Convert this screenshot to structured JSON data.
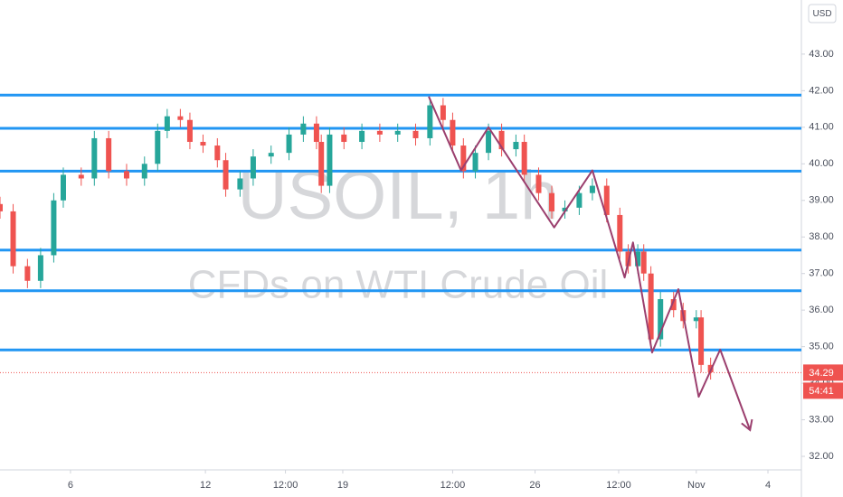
{
  "chart_data": {
    "type": "candlestick",
    "symbol_watermark": "USOIL, 1h",
    "description_watermark": "CFDs on WTI Crude Oil",
    "currency": "USD",
    "last_price": 34.29,
    "countdown": "54:41",
    "up_color": "#26a69a",
    "down_color": "#ef5350",
    "x": [
      0,
      11,
      23,
      34,
      45,
      53,
      68,
      79,
      91,
      106,
      121,
      132,
      140,
      151,
      159,
      170,
      182,
      189,
      201,
      212,
      227,
      242,
      254,
      265,
      269,
      276,
      288,
      303,
      318,
      333,
      348,
      360,
      371,
      379,
      388,
      398,
      409,
      420,
      432,
      439,
      451,
      462,
      473,
      485,
      496,
      508,
      519,
      526,
      534,
      539,
      545,
      553,
      564,
      572,
      583,
      587,
      595
    ],
    "open": [
      38.9,
      38.7,
      37.2,
      36.8,
      37.5,
      39.0,
      39.7,
      39.6,
      40.7,
      39.8,
      39.6,
      40.0,
      40.9,
      41.3,
      41.2,
      40.6,
      40.5,
      40.1,
      39.3,
      39.6,
      40.2,
      40.3,
      40.8,
      41.1,
      40.6,
      39.4,
      40.8,
      40.6,
      40.9,
      40.8,
      40.9,
      40.7,
      41.6,
      41.2,
      40.5,
      39.8,
      40.3,
      40.9,
      40.4,
      40.6,
      39.7,
      39.2,
      38.7,
      38.8,
      39.2,
      39.4,
      38.6,
      37.6,
      37.2,
      37.6,
      37.0,
      35.2,
      36.3,
      36.0,
      35.7,
      35.8,
      34.5
    ],
    "high": [
      39.1,
      38.9,
      37.4,
      37.7,
      39.2,
      39.9,
      39.9,
      40.9,
      40.9,
      40.0,
      40.2,
      41.1,
      41.5,
      41.5,
      41.4,
      40.8,
      40.7,
      40.3,
      39.8,
      40.4,
      40.5,
      41.0,
      41.3,
      41.3,
      40.8,
      41.0,
      41.0,
      41.1,
      41.1,
      41.1,
      41.1,
      41.8,
      41.8,
      41.4,
      40.7,
      40.5,
      41.1,
      41.1,
      40.8,
      40.8,
      39.9,
      39.4,
      39.0,
      39.4,
      39.6,
      39.6,
      38.8,
      37.8,
      37.8,
      37.8,
      37.2,
      36.5,
      36.5,
      36.2,
      36.0,
      36.0,
      34.7
    ],
    "low": [
      38.5,
      37.0,
      36.6,
      36.6,
      37.3,
      38.8,
      39.4,
      39.4,
      39.6,
      39.4,
      39.4,
      39.8,
      40.7,
      41.0,
      40.4,
      40.3,
      39.9,
      39.1,
      39.1,
      39.4,
      40.0,
      40.1,
      40.6,
      40.4,
      39.2,
      39.2,
      40.4,
      40.4,
      40.6,
      40.6,
      40.5,
      40.5,
      41.0,
      40.3,
      39.6,
      39.6,
      40.1,
      40.2,
      40.2,
      39.5,
      39.0,
      38.5,
      38.5,
      38.6,
      39.0,
      38.4,
      37.4,
      37.0,
      37.0,
      36.8,
      35.0,
      35.0,
      35.8,
      35.5,
      35.5,
      34.3,
      34.1
    ],
    "close": [
      38.7,
      37.2,
      36.8,
      37.5,
      39.0,
      39.7,
      39.6,
      40.7,
      39.8,
      39.6,
      40.0,
      40.9,
      41.3,
      41.2,
      40.6,
      40.5,
      40.1,
      39.3,
      39.6,
      40.2,
      40.3,
      40.8,
      41.1,
      40.6,
      39.4,
      40.8,
      40.6,
      40.9,
      40.8,
      40.9,
      40.7,
      41.6,
      41.2,
      40.5,
      39.8,
      40.3,
      40.9,
      40.4,
      40.6,
      39.7,
      39.2,
      38.7,
      38.8,
      39.2,
      39.4,
      38.6,
      37.6,
      37.2,
      37.6,
      37.0,
      35.2,
      36.3,
      36.0,
      35.7,
      35.8,
      34.5,
      34.3
    ],
    "levels": {
      "color": "#2196f3",
      "values": [
        41.88,
        40.97,
        39.8,
        37.64,
        36.53,
        34.91
      ]
    },
    "zigzag": {
      "color": "#9b3f6e",
      "x": [
        359,
        386,
        409,
        464,
        496,
        523,
        530,
        546,
        568,
        585,
        603,
        628
      ],
      "y": [
        41.84,
        39.82,
        41.0,
        38.26,
        39.82,
        36.89,
        37.85,
        34.84,
        36.57,
        33.63,
        34.92,
        32.72
      ]
    },
    "xlim": [
      0,
      671
    ],
    "ylim": [
      31.63,
      44.48
    ],
    "xticks": [
      {
        "value": 59,
        "label": "6"
      },
      {
        "value": 172,
        "label": "12"
      },
      {
        "value": 239,
        "label": "12:00"
      },
      {
        "value": 287,
        "label": "19"
      },
      {
        "value": 379,
        "label": "12:00"
      },
      {
        "value": 448,
        "label": "26"
      },
      {
        "value": 518,
        "label": "12:00"
      },
      {
        "value": 583,
        "label": "Nov"
      },
      {
        "value": 643,
        "label": "4"
      }
    ],
    "yticks": [
      {
        "value": 32,
        "label": "32.00"
      },
      {
        "value": 33,
        "label": "33.00"
      },
      {
        "value": 34,
        "label": "34.00"
      },
      {
        "value": 35,
        "label": "35.00"
      },
      {
        "value": 36,
        "label": "36.00"
      },
      {
        "value": 37,
        "label": "37.00"
      },
      {
        "value": 38,
        "label": "38.00"
      },
      {
        "value": 39,
        "label": "39.00"
      },
      {
        "value": 40,
        "label": "40.00"
      },
      {
        "value": 41,
        "label": "41.00"
      },
      {
        "value": 42,
        "label": "42.00"
      },
      {
        "value": 43,
        "label": "43.00"
      }
    ]
  }
}
